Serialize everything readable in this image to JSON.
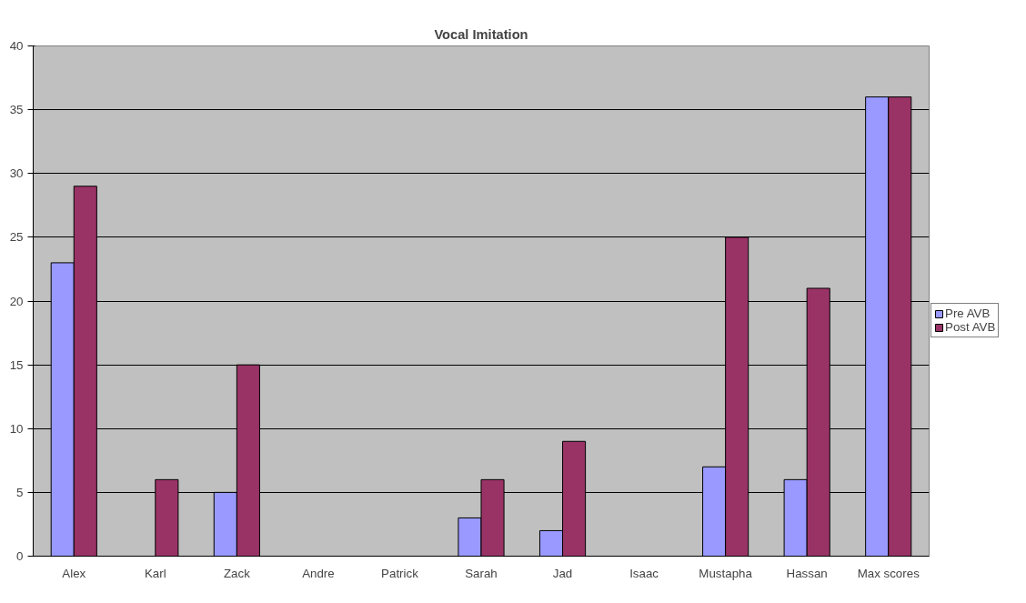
{
  "chart_data": {
    "type": "bar",
    "title": "Vocal Imitation",
    "categories": [
      "Alex",
      "Karl",
      "Zack",
      "Andre",
      "Patrick",
      "Sarah",
      "Jad",
      "Isaac",
      "Mustapha",
      "Hassan",
      "Max scores"
    ],
    "series": [
      {
        "name": "Pre AVB",
        "color": "#9999ff",
        "values": [
          23,
          0,
          5,
          0,
          0,
          3,
          2,
          0,
          7,
          6,
          36
        ]
      },
      {
        "name": "Post AVB",
        "color": "#993366",
        "values": [
          29,
          6,
          15,
          0,
          0,
          6,
          9,
          0,
          25,
          21,
          36
        ]
      }
    ],
    "ylim": [
      0,
      40
    ],
    "yticks": [
      0,
      5,
      10,
      15,
      20,
      25,
      30,
      35,
      40
    ],
    "grid": "y",
    "legend": "right"
  }
}
